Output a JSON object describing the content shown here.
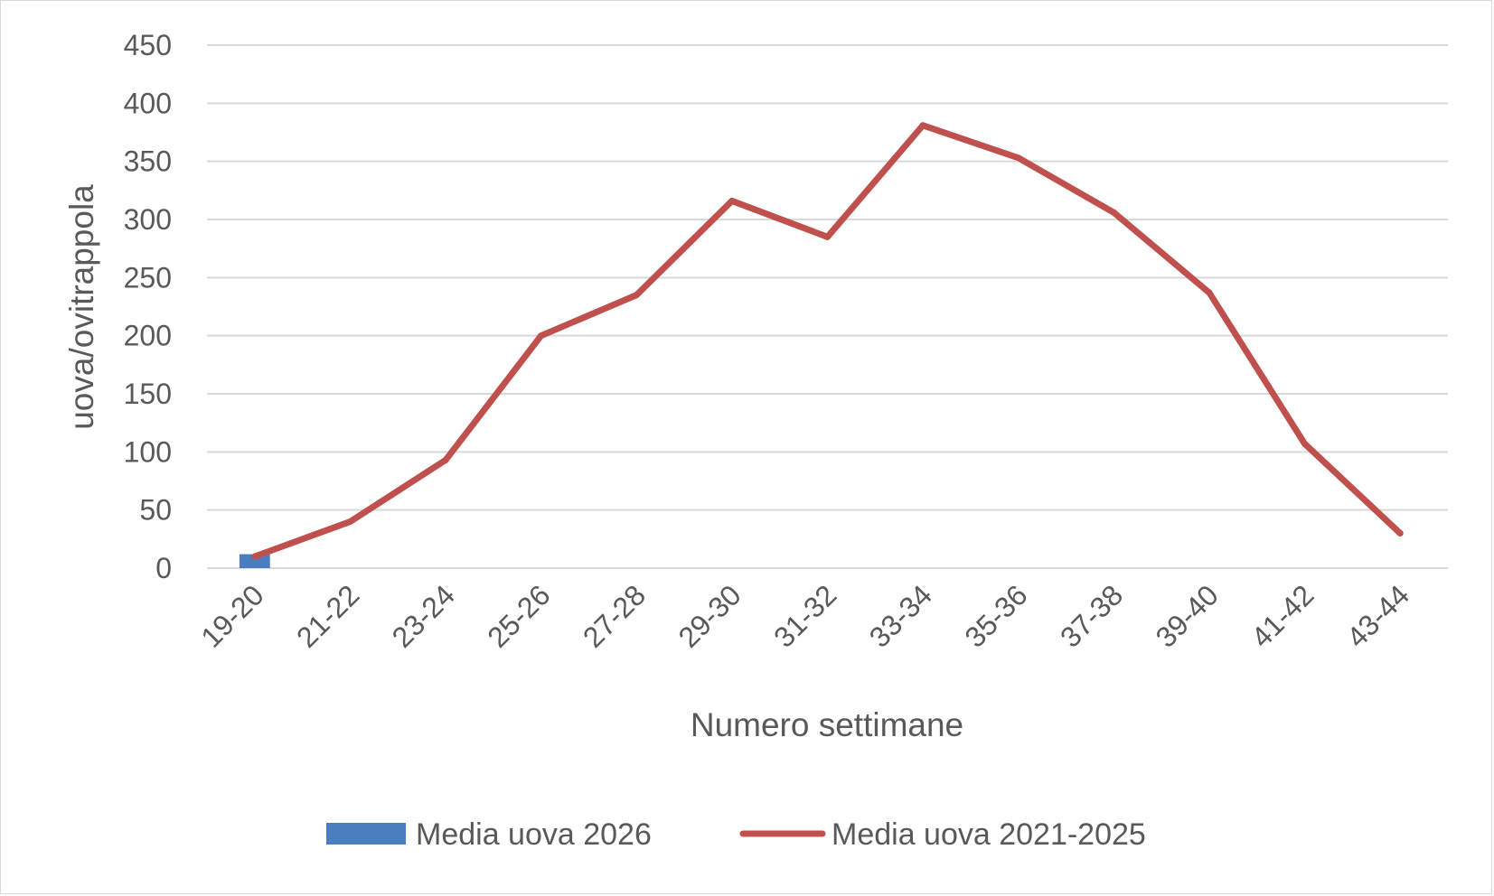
{
  "chart_data": {
    "type": "line",
    "title": "",
    "xlabel": "Numero settimane",
    "ylabel": "uova/ovitrappola",
    "categories": [
      "19-20",
      "21-22",
      "23-24",
      "25-26",
      "27-28",
      "29-30",
      "31-32",
      "33-34",
      "35-36",
      "37-38",
      "39-40",
      "41-42",
      "43-44"
    ],
    "ylim": [
      0,
      450
    ],
    "yticks": [
      0,
      50,
      100,
      150,
      200,
      250,
      300,
      350,
      400,
      450
    ],
    "grid": true,
    "legend_position": "bottom",
    "series": [
      {
        "name": "Media uova 2026",
        "kind": "bar",
        "color": "#4a7ebf",
        "values": [
          12,
          null,
          null,
          null,
          null,
          null,
          null,
          null,
          null,
          null,
          null,
          null,
          null
        ]
      },
      {
        "name": "Media uova 2021-2025",
        "kind": "line",
        "color": "#c0504d",
        "values": [
          10,
          40,
          93,
          200,
          235,
          316,
          285,
          381,
          353,
          306,
          237,
          107,
          30
        ]
      }
    ]
  }
}
